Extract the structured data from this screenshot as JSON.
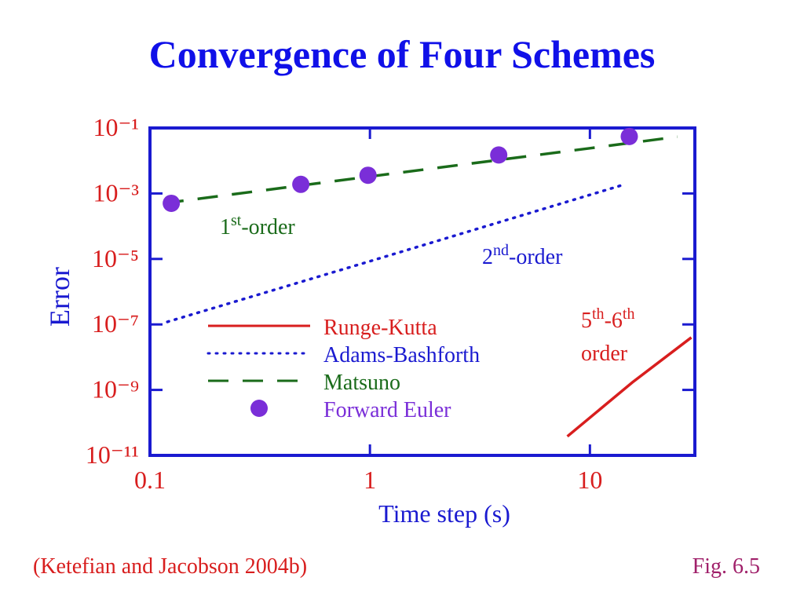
{
  "chart_data": {
    "type": "line",
    "title": "Convergence of Four Schemes",
    "x_label": "Time step (s)",
    "y_label": "Error",
    "log_x": true,
    "log_y": true,
    "xlim": [
      0.1,
      30
    ],
    "xticks": [
      0.1,
      1,
      10
    ],
    "ylim": [
      1e-11,
      0.1
    ],
    "yticks": [
      {
        "value": 0.1,
        "label": "10⁻¹"
      },
      {
        "value": 0.001,
        "label": "10⁻³"
      },
      {
        "value": 1e-05,
        "label": "10⁻⁵"
      },
      {
        "value": 1e-07,
        "label": "10⁻⁷"
      },
      {
        "value": 1e-09,
        "label": "10⁻⁹"
      },
      {
        "value": 1e-11,
        "label": "10⁻¹¹"
      }
    ],
    "series": [
      {
        "name": "Runge-Kutta",
        "color": "#d81e1e",
        "style": "solid",
        "x": [
          7.9,
          15.6,
          28.9
        ],
        "values": [
          3.8e-11,
          1.7e-09,
          4e-08
        ]
      },
      {
        "name": "Adams-Bashforth",
        "color": "#1a1ad0",
        "style": "dotted",
        "x": [
          0.12,
          1,
          14.4
        ],
        "values": [
          1.2e-07,
          8.5e-06,
          0.0019
        ]
      },
      {
        "name": "Matsuno",
        "color": "#1a6b1a",
        "style": "dashed",
        "x": [
          0.115,
          1,
          10,
          25
        ],
        "values": [
          0.0005,
          0.0033,
          0.024,
          0.054
        ]
      },
      {
        "name": "Forward Euler",
        "color": "#7a2ed8",
        "style": "markers",
        "x": [
          0.125,
          0.485,
          0.98,
          3.85,
          15.1
        ],
        "values": [
          0.0005,
          0.0019,
          0.0036,
          0.015,
          0.055
        ]
      }
    ],
    "annotations": [
      {
        "text": [
          "1",
          "st",
          "-order"
        ],
        "color": "#1a6b1a"
      },
      {
        "text": [
          "2",
          "nd",
          "-order"
        ],
        "color": "#1a1ad0"
      },
      {
        "text": [
          "5",
          "th",
          "-6",
          "th"
        ],
        "color": "#d81e1e"
      },
      {
        "text": [
          "order"
        ],
        "color": "#d81e1e"
      }
    ]
  },
  "footer": {
    "source": "(Ketefian and Jacobson 2004b)",
    "figure": "Fig. 6.5"
  }
}
